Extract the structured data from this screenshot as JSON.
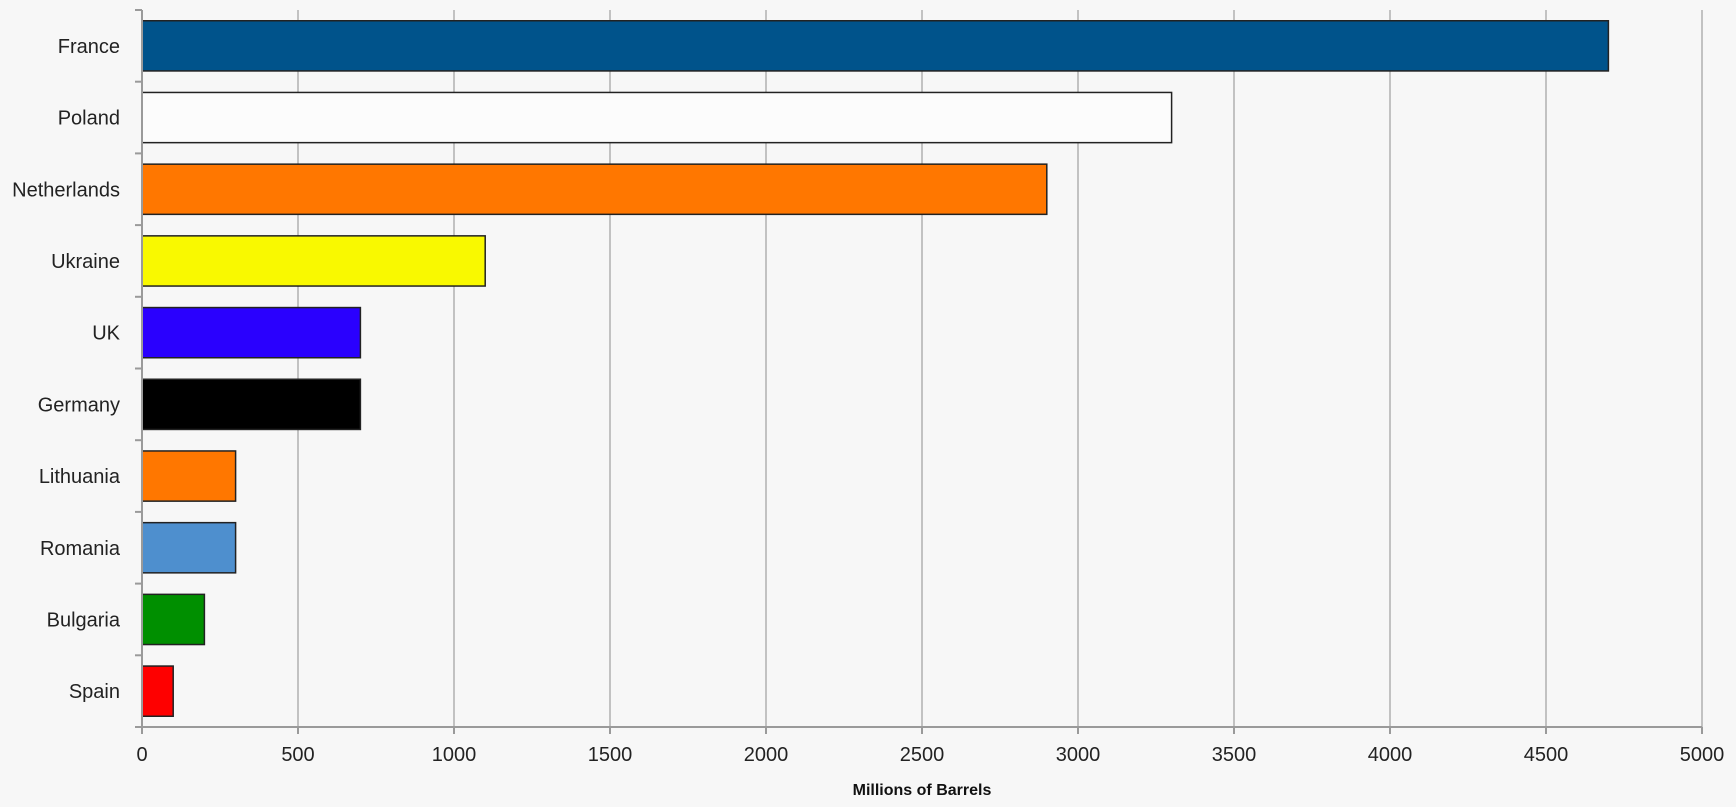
{
  "chart_data": {
    "type": "bar",
    "orientation": "horizontal",
    "title": "",
    "xlabel": "Millions of Barrels",
    "ylabel": "",
    "xlim": [
      0,
      5000
    ],
    "x_ticks": [
      0,
      500,
      1000,
      1500,
      2000,
      2500,
      3000,
      3500,
      4000,
      4500,
      5000
    ],
    "grid": true,
    "legend": "none",
    "categories": [
      "France",
      "Poland",
      "Netherlands",
      "Ukraine",
      "UK",
      "Germany",
      "Lithuania",
      "Romania",
      "Bulgaria",
      "Spain"
    ],
    "values": [
      4700,
      3300,
      2900,
      1100,
      700,
      700,
      300,
      300,
      200,
      100
    ],
    "colors": [
      "#00538b",
      "#fcfcfc",
      "#ff7700",
      "#f9f900",
      "#2a00fe",
      "#000000",
      "#ff7700",
      "#4e8fce",
      "#008f00",
      "#fe0000"
    ]
  }
}
